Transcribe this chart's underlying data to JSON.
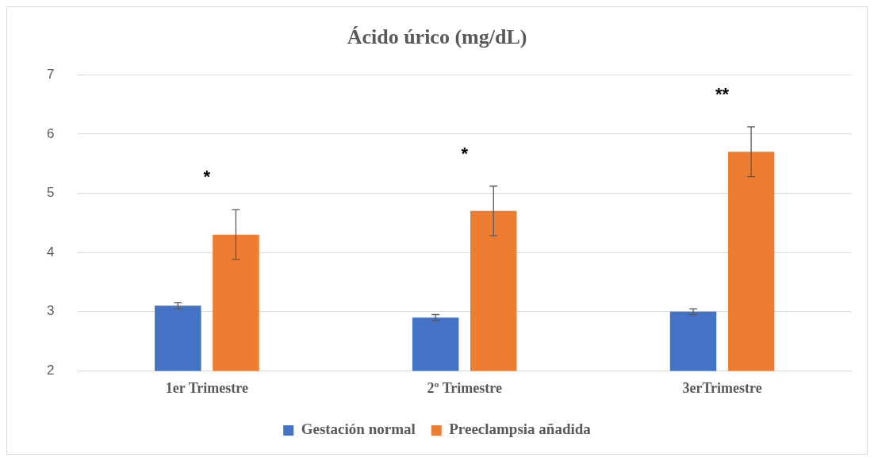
{
  "chart_data": {
    "type": "bar",
    "title": "Ácido úrico (mg/dL)",
    "categories": [
      "1er Trimestre",
      "2º Trimestre",
      "3erTrimestre"
    ],
    "series": [
      {
        "name": "Gestación normal",
        "color": "#4472c4",
        "values": [
          3.1,
          2.9,
          3.0
        ],
        "errors": [
          0.05,
          0.05,
          0.05
        ]
      },
      {
        "name": "Preeclampsia añadida",
        "color": "#ed7d31",
        "values": [
          4.3,
          4.7,
          5.7
        ],
        "errors": [
          0.42,
          0.42,
          0.42
        ]
      }
    ],
    "ylim": [
      2,
      7
    ],
    "yticks": [
      2,
      3,
      4,
      5,
      6,
      7
    ],
    "grid": "y",
    "legend": "bottom",
    "annotations": [
      "*",
      "*",
      "**"
    ]
  }
}
